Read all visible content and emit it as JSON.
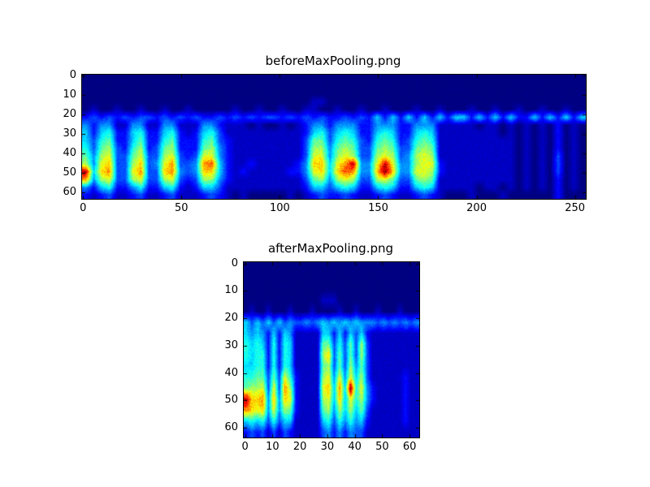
{
  "figure": {
    "background_color": "#ffffff",
    "axes_frame_color": "#000000",
    "min_color": "#000080"
  },
  "chart_data": [
    {
      "type": "heatmap",
      "title": "beforeMaxPooling.png",
      "colormap": "jet",
      "xlabel": "",
      "ylabel": "",
      "shape_rows_cols": [
        64,
        256
      ],
      "xlim": [
        -0.5,
        255.5
      ],
      "ylim": [
        63.5,
        -0.5
      ],
      "xticks": [
        0,
        50,
        100,
        150,
        200,
        250
      ],
      "yticks": [
        0,
        10,
        20,
        30,
        40,
        50,
        60
      ],
      "grid_encoding": "rows top-to-bottom, hex digit 0-15 = intensity mapped onto jet colormap (downsampled 16x64)",
      "grid": [
        "0000000000000000000000000000000000000000000000000000000000000000",
        "0000000000000000000000000000000000000000000000000000000000000000",
        "0000000000000000000000000000000000000000000000000000000000000000",
        "0000000000000000000000000000011000000000000000000000000000000000",
        "0100100100100100000100100100110010010010001001000100100100100100",
        "2323232332323232232323233232323223232525252525255252525225252525",
        "4244114411441114421110100101244244422444224441111101101010102010",
        "5256225622562125631111111111256356522565225651111111101010102010",
        "5367225722672226732111111111377367632676236761111111111010102010",
        "6378326823782227842111111111388478733787337871111111111010102010",
        "7489337933893239942111111111399489833898348981111111111010103010",
        "849a338a349b334bc521121111124aa59be449e9448992111111111010103010",
        "e5ab339b33ab434aa5212111112249a5acb44afa449982111111111010103010",
        "b489338933893238842111111111378489833897337871111111111010102010",
        "4256224622562125531111111111255356522565225651111101101010102010",
        "2123112311231112321010000010123223211232112321000100010000002000"
      ]
    },
    {
      "type": "heatmap",
      "title": "afterMaxPooling.png",
      "colormap": "jet",
      "xlabel": "",
      "ylabel": "",
      "shape_rows_cols": [
        64,
        64
      ],
      "xlim": [
        -0.5,
        63.5
      ],
      "ylim": [
        63.5,
        -0.5
      ],
      "xticks": [
        0,
        10,
        20,
        30,
        40,
        50,
        60
      ],
      "yticks": [
        0,
        10,
        20,
        30,
        40,
        50,
        60
      ],
      "grid_encoding": "rows top-to-bottom, hex digit 0-15 = intensity mapped onto jet colormap (downsampled 16x32)",
      "grid": [
        "00000000000000000000000000000000",
        "00000000000000000000000000000000",
        "00000000000000000000000000000000",
        "00000000000000111000000000000000",
        "01001000100010000100100010001000",
        "53535353433434545454544434343434",
        "54542525411111552525352111111111",
        "65652626511111773637383111111111",
        "656626265111118a3737383111111111",
        "55662626511111783738473111111111",
        "66773739621111894949583111111211",
        "7889393b8211119a5b5f694211111211",
        "eaab4a4a921111895a59684211111211",
        "ba9a4948721111784858573111111211",
        "56563635511111563646452111111211",
        "23231313211111342424331111111111"
      ]
    }
  ]
}
